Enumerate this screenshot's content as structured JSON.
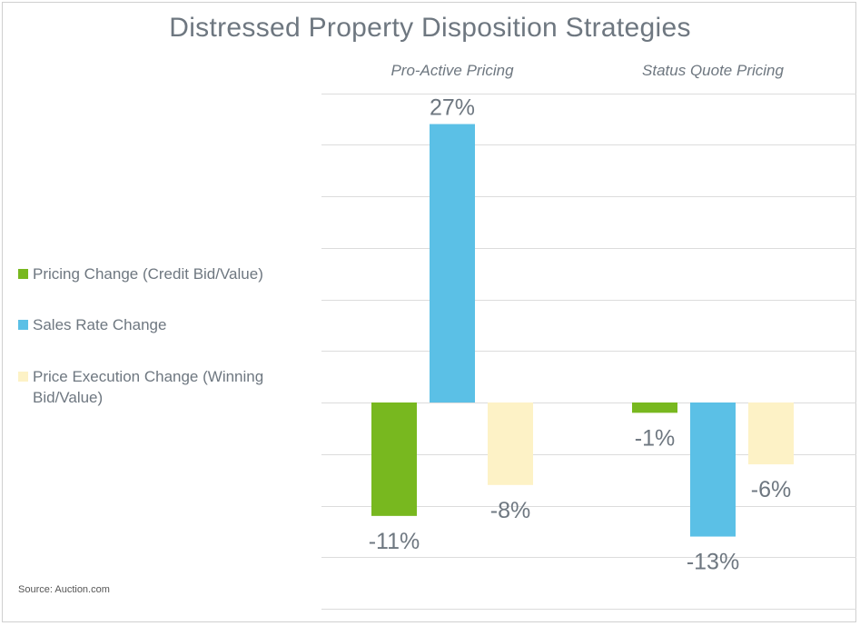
{
  "chart_data": {
    "type": "bar",
    "title": "Distressed Property Disposition Strategies",
    "categories": [
      "Pro-Active Pricing",
      "Status Quote Pricing"
    ],
    "series": [
      {
        "name": "Pricing Change (Credit Bid/Value)",
        "values": [
          -11,
          -1
        ],
        "labels": [
          "-11%",
          "-1%"
        ],
        "color": "#78b81f"
      },
      {
        "name": "Sales Rate Change",
        "values": [
          27,
          -13
        ],
        "labels": [
          "27%",
          "-13%"
        ],
        "color": "#5bc0e6"
      },
      {
        "name": "Price Execution Change (Winning Bid/Value)",
        "values": [
          -8,
          -6
        ],
        "labels": [
          "-8%",
          "-6%"
        ],
        "color": "#fdf2c6"
      }
    ],
    "ylim": [
      -20,
      30
    ],
    "gridlines": true,
    "legend_position": "left",
    "xlabel": "",
    "ylabel": ""
  },
  "source": "Source: Auction.com",
  "colors": {
    "text": "#6e7780",
    "grid": "#dcdcdc"
  }
}
